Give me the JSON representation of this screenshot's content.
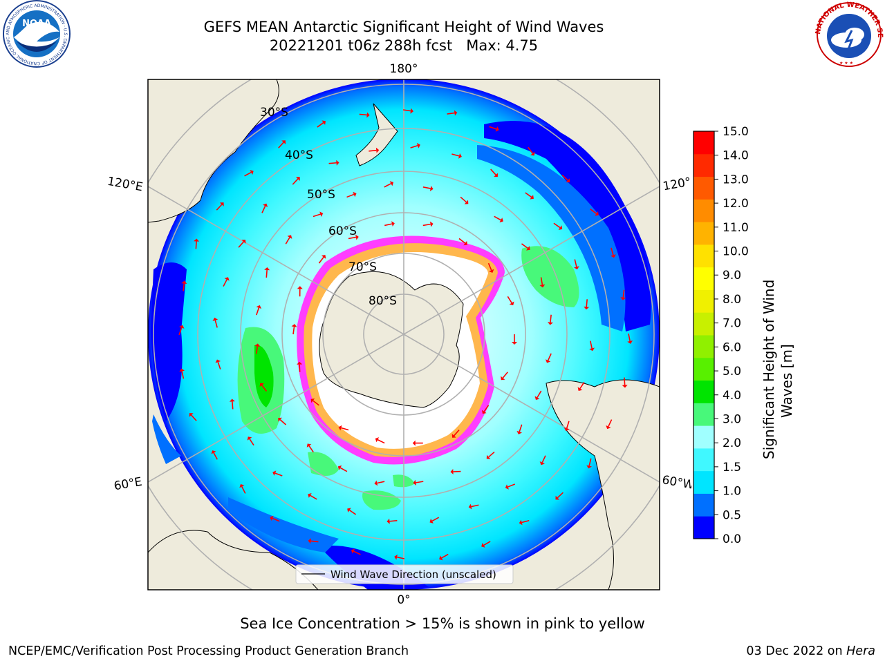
{
  "title": {
    "line1": "GEFS MEAN Antarctic Significant Height of Wind Waves",
    "line2": "20221201 t06z 288h fcst   Max: 4.75"
  },
  "logos": {
    "noaa": {
      "name": "noaa-logo",
      "text": "NOAA",
      "ring_text": "NATIONAL OCEANIC AND ATMOSPHERIC ADMINISTRATION · U.S. DEPARTMENT OF COMMERCE"
    },
    "nws": {
      "name": "nws-logo",
      "ring_text": "NATIONAL WEATHER SERVICE"
    }
  },
  "map": {
    "projection": "south-polar-stereographic",
    "longitude_labels": {
      "top": "180°",
      "bottom": "0°",
      "upper_left": "120°E",
      "upper_right": "120°",
      "lower_left": "60°E",
      "lower_right": "60°W"
    },
    "latitude_labels": [
      "30°S",
      "40°S",
      "50°S",
      "60°S",
      "70°S",
      "80°S"
    ],
    "legend": "Wind Wave Direction (unscaled)",
    "colors": {
      "land": "#EEEBDC",
      "ice_outline": "#FF3DFF",
      "ice_edge": "#FFB74D",
      "ice_interior": "#FFFFFF",
      "arrow": "#FF0000",
      "gridline": "#B0B0B0"
    }
  },
  "colorbar": {
    "label": "Significant Height of Wind Waves [m]",
    "label_lines": [
      "Significant Height of Wind",
      "Waves [m]"
    ],
    "ticks": [
      "0.0",
      "0.5",
      "1.0",
      "1.5",
      "2.0",
      "3.0",
      "4.0",
      "5.0",
      "6.0",
      "7.0",
      "8.0",
      "9.0",
      "10.0",
      "11.0",
      "12.0",
      "13.0",
      "14.0",
      "15.0"
    ],
    "colors": [
      "#0000FF",
      "#0070FF",
      "#00E5FF",
      "#40F8FF",
      "#A0FFFF",
      "#48F87A",
      "#00E400",
      "#58F000",
      "#90F000",
      "#C8F000",
      "#F0F000",
      "#FFFF00",
      "#FFE100",
      "#FFB300",
      "#FF8C00",
      "#FF5A00",
      "#FF2A00",
      "#FF0000"
    ]
  },
  "chart_data": {
    "type": "heatmap",
    "variable": "Significant Height of Wind Waves",
    "units": "m",
    "max": 4.75,
    "legend": "Wind Wave Direction (unscaled)"
  },
  "caption": "Sea Ice Concentration > 15% is shown in pink to yellow",
  "footer": {
    "left": "NCEP/EMC/Verification Post Processing Product Generation Branch",
    "right_date": "03 Dec 2022 on ",
    "right_host": "Hera"
  }
}
